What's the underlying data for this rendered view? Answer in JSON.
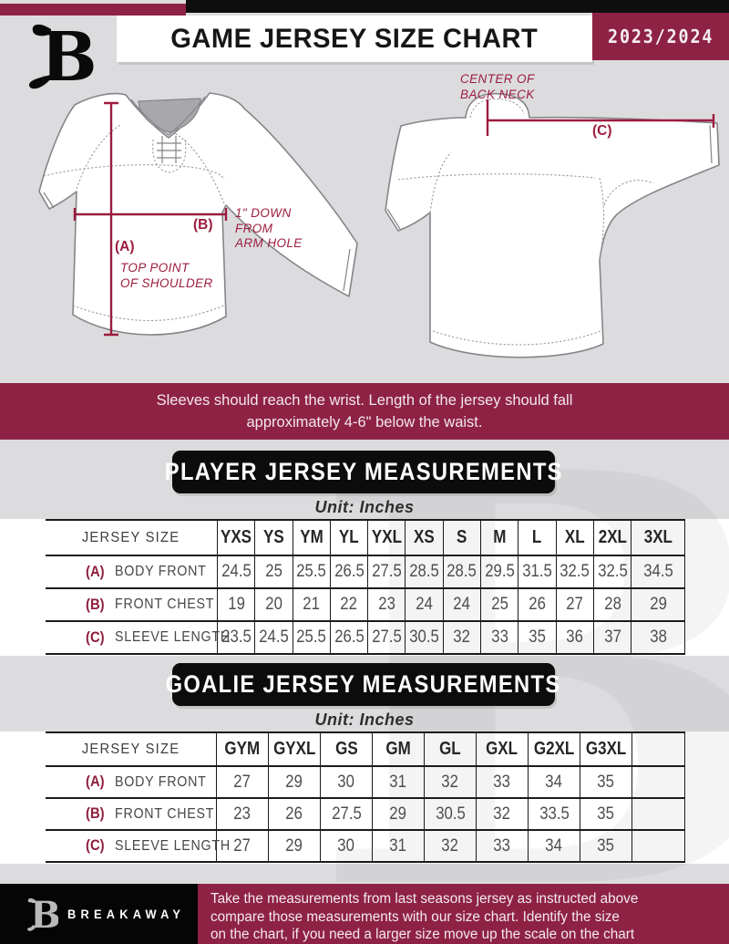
{
  "header": {
    "title": "GAME JERSEY SIZE CHART",
    "season": "2023/2024",
    "logo_letter": "B"
  },
  "diagram": {
    "front": {
      "a_tag": "(A)",
      "a_desc": [
        "TOP POINT",
        "OF SHOULDER"
      ],
      "b_tag": "(B)",
      "b_desc": [
        "1\" DOWN",
        "FROM",
        "ARM HOLE"
      ]
    },
    "back": {
      "c_tag": "(C)",
      "neck_desc": [
        "CENTER OF",
        "BACK NECK"
      ]
    }
  },
  "notice": {
    "line1": "Sleeves should reach the wrist. Length of the jersey should fall",
    "line2": "approximately 4-6\" below the waist."
  },
  "player_table": {
    "title": "PLAYER JERSEY MEASUREMENTS",
    "unit": "Unit: Inches",
    "corner_label": "JERSEY SIZE",
    "sizes": [
      "YXS",
      "YS",
      "YM",
      "YL",
      "YXL",
      "XS",
      "S",
      "M",
      "L",
      "XL",
      "2XL",
      "3XL"
    ],
    "rows": [
      {
        "key": "(A)",
        "label": "BODY FRONT",
        "values": [
          "24.5",
          "25",
          "25.5",
          "26.5",
          "27.5",
          "28.5",
          "28.5",
          "29.5",
          "31.5",
          "32.5",
          "32.5",
          "34.5"
        ]
      },
      {
        "key": "(B)",
        "label": "FRONT CHEST",
        "values": [
          "19",
          "20",
          "21",
          "22",
          "23",
          "24",
          "24",
          "25",
          "26",
          "27",
          "28",
          "29"
        ]
      },
      {
        "key": "(C)",
        "label": "SLEEVE LENGTH",
        "values": [
          "23.5",
          "24.5",
          "25.5",
          "26.5",
          "27.5",
          "30.5",
          "32",
          "33",
          "35",
          "36",
          "37",
          "38"
        ]
      }
    ]
  },
  "goalie_table": {
    "title": "GOALIE JERSEY MEASUREMENTS",
    "unit": "Unit: Inches",
    "corner_label": "JERSEY SIZE",
    "sizes": [
      "GYM",
      "GYXL",
      "GS",
      "GM",
      "GL",
      "GXL",
      "G2XL",
      "G3XL"
    ],
    "rows": [
      {
        "key": "(A)",
        "label": "BODY FRONT",
        "values": [
          "27",
          "29",
          "30",
          "31",
          "32",
          "33",
          "34",
          "35"
        ]
      },
      {
        "key": "(B)",
        "label": "FRONT CHEST",
        "values": [
          "23",
          "26",
          "27.5",
          "29",
          "30.5",
          "32",
          "33.5",
          "35"
        ]
      },
      {
        "key": "(C)",
        "label": "SLEEVE LENGTH",
        "values": [
          "27",
          "29",
          "30",
          "31",
          "32",
          "33",
          "34",
          "35"
        ]
      }
    ]
  },
  "footer": {
    "brand": "BREAKAWAY",
    "lines": [
      "Take the measurements from last seasons jersey as instructed above",
      "compare those measurements  with our size chart. Identify the size",
      "on the chart, if you need a larger size move up the scale on the chart"
    ]
  },
  "colors": {
    "maroon": "#8E2245",
    "measure_line": "#9C1C3F",
    "black": "#0E0E0E",
    "page_bg": "#DCDCDE"
  }
}
